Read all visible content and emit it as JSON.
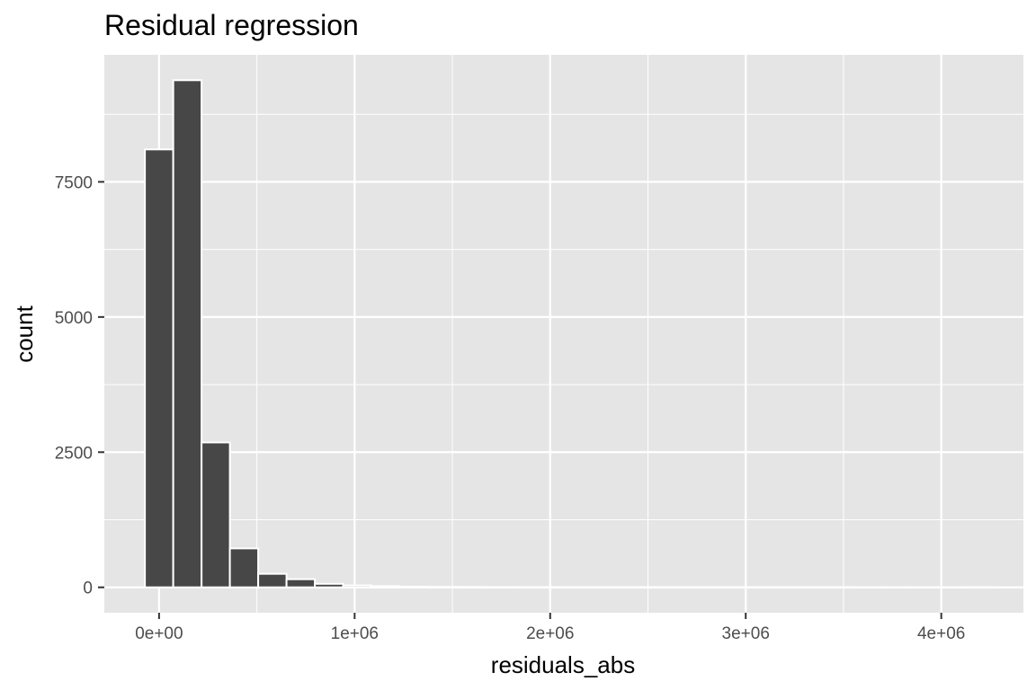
{
  "chart_data": {
    "type": "bar",
    "title": "Residual regression",
    "xlabel": "residuals_abs",
    "ylabel": "count",
    "bin_width": 144827.6,
    "bin_centers": [
      0,
      144828,
      289655,
      434483,
      579310,
      724138,
      868966,
      1013793,
      1158621,
      1303448,
      1448276,
      1593103,
      1737931,
      1882759,
      2027586,
      2172414,
      2317241,
      2462069,
      2606897,
      2751724,
      2896552,
      3041379,
      3186207,
      3331034,
      3475862,
      3620690,
      3765517,
      3910345,
      4055172,
      4200000
    ],
    "values": [
      8100,
      9380,
      2680,
      720,
      250,
      150,
      65,
      35,
      20,
      12,
      8,
      6,
      5,
      4,
      3,
      3,
      2,
      2,
      1,
      1,
      1,
      1,
      1,
      1,
      1,
      0,
      0,
      0,
      0,
      1
    ],
    "xlim": [
      -280000,
      4420000
    ],
    "ylim": [
      -470,
      9850
    ],
    "x_ticks": [
      0,
      1000000,
      2000000,
      3000000,
      4000000
    ],
    "x_tick_labels": [
      "0e+00",
      "1e+06",
      "2e+06",
      "3e+06",
      "4e+06"
    ],
    "y_ticks": [
      0,
      2500,
      5000,
      7500
    ],
    "y_tick_labels": [
      "0",
      "2500",
      "5000",
      "7500"
    ],
    "grid": true,
    "bar_color": "#474747",
    "bar_outline": "#ffffff",
    "panel_background": "#e5e5e5",
    "grid_color": "#ffffff"
  }
}
